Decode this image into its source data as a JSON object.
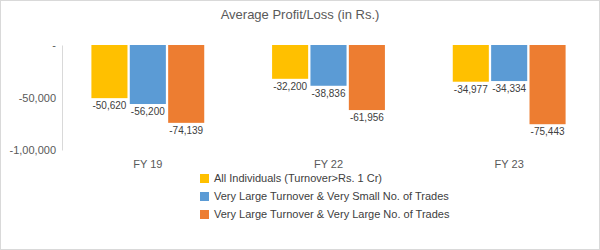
{
  "chart_data": {
    "type": "bar",
    "title": "Average Profit/Loss (in Rs.)",
    "categories": [
      "FY 19",
      "FY 22",
      "FY 23"
    ],
    "series": [
      {
        "name": "All Individuals (Turnover>Rs. 1 Cr)",
        "color": "#ffc000",
        "values": [
          -50620,
          -32200,
          -34977
        ],
        "value_labels": [
          "-50,620",
          "-32,200",
          "-34,977"
        ]
      },
      {
        "name": "Very Large Turnover & Very Small No. of Trades",
        "color": "#5b9bd5",
        "values": [
          -56200,
          -38836,
          -34334
        ],
        "value_labels": [
          "-56,200",
          "-38,836",
          "-34,334"
        ]
      },
      {
        "name": "Very Large Turnover & Very Large No. of Trades",
        "color": "#ed7d31",
        "values": [
          -74139,
          -61956,
          -75443
        ],
        "value_labels": [
          "-74,139",
          "-61,956",
          "-75,443"
        ]
      }
    ],
    "ylim": [
      -100000,
      0
    ],
    "yticks": [
      {
        "value": 0,
        "label": "-"
      },
      {
        "value": -50000,
        "label": "-50,000"
      },
      {
        "value": -100000,
        "label": "-1,00,000"
      }
    ],
    "grid": false,
    "legend": "bottom",
    "data_labels": true
  }
}
